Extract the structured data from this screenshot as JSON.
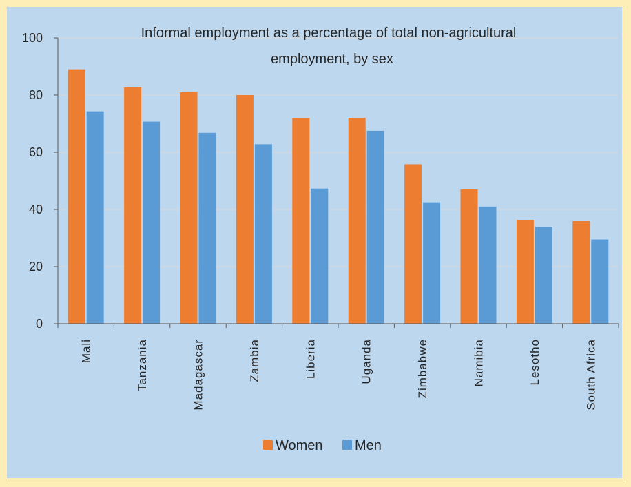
{
  "chart_data": {
    "type": "bar",
    "title_lines": [
      "Informal employment as a percentage of total non-agricultural",
      "employment, by sex"
    ],
    "categories": [
      "Mali",
      "Tanzania",
      "Madagascar",
      "Zambia",
      "Liberia",
      "Uganda",
      "Zimbabwe",
      "Namibia",
      "Lesotho",
      "South Africa"
    ],
    "series": [
      {
        "name": "Women",
        "color": "#ed7d31",
        "values": [
          89,
          82.7,
          81,
          80,
          72,
          72,
          55.8,
          47,
          36.3,
          35.9
        ]
      },
      {
        "name": "Men",
        "color": "#5b9bd5",
        "values": [
          74.3,
          70.7,
          66.8,
          62.8,
          47.3,
          67.5,
          42.5,
          41,
          33.9,
          29.5
        ]
      }
    ],
    "ylim": [
      0,
      100
    ],
    "yticks": [
      "0",
      "20",
      "40",
      "60",
      "80",
      "100"
    ],
    "grid": true,
    "legend_position": "bottom"
  }
}
